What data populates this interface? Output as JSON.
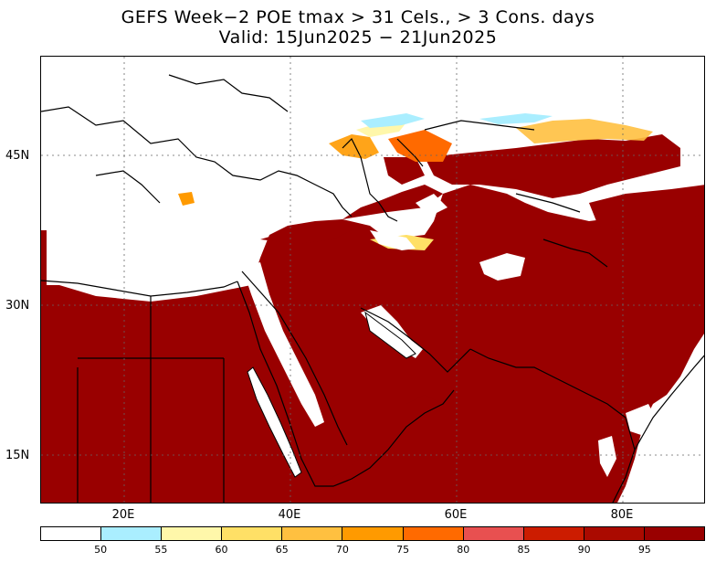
{
  "title_line1": "GEFS Week−2 POE tmax > 31 Cels., > 3 Cons. days",
  "title_line2": "Valid: 15Jun2025 − 21Jun2025",
  "map": {
    "lon_range": [
      10,
      90
    ],
    "lat_range": [
      10,
      55
    ],
    "lat_labels": [
      "45N",
      "30N",
      "15N"
    ],
    "lon_labels": [
      "20E",
      "40E",
      "60E",
      "80E"
    ],
    "gridlines": "dotted"
  },
  "colorbar": {
    "colors": [
      "#ffffff",
      "#aaeeff",
      "#fff7aa",
      "#ffe066",
      "#ffc040",
      "#ff9a00",
      "#ff6a00",
      "#e85050",
      "#cc1c00",
      "#aa0a00",
      "#990000"
    ],
    "ticks": [
      "50",
      "55",
      "60",
      "65",
      "70",
      "75",
      "80",
      "85",
      "90",
      "95"
    ]
  }
}
